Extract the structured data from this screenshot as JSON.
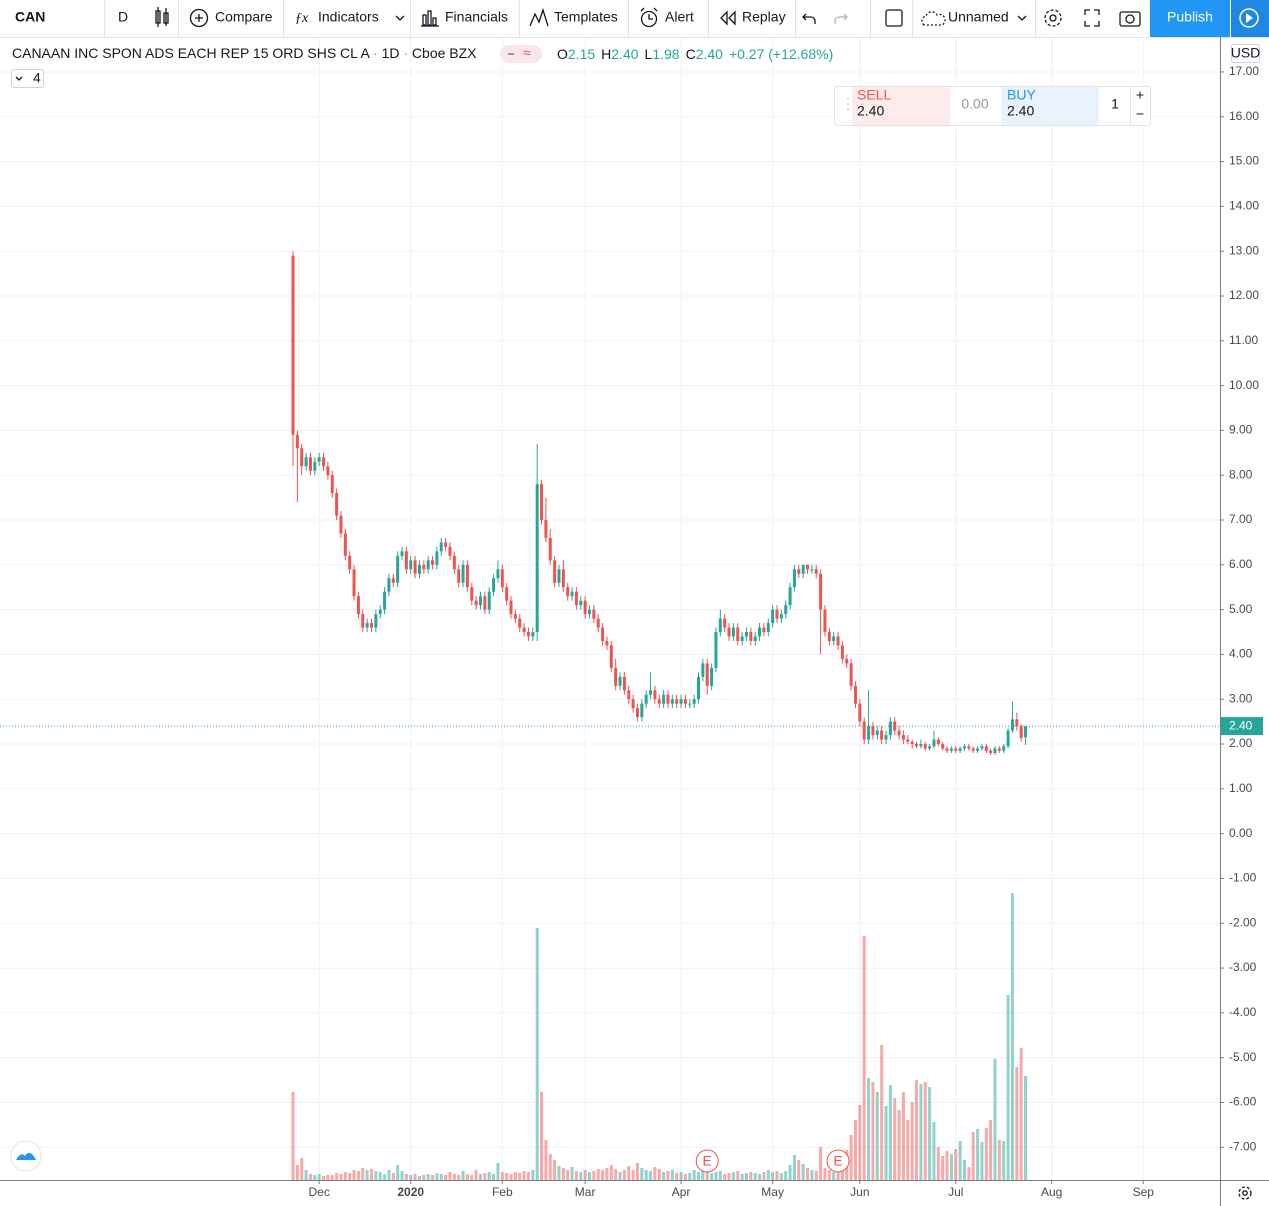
{
  "toolbar": {
    "symbol": "CAN",
    "interval": "D",
    "compare": "Compare",
    "indicators": "Indicators",
    "financials": "Financials",
    "templates": "Templates",
    "alert": "Alert",
    "replay": "Replay",
    "layout_name": "Unnamed",
    "publish": "Publish"
  },
  "header": {
    "title": "CANAAN INC SPON ADS EACH REP 15 ORD SHS CL A",
    "interval": "1D",
    "exchange": "Cboe BZX",
    "legend": [
      {
        "label": "O",
        "value": "2.15"
      },
      {
        "label": "H",
        "value": "2.40"
      },
      {
        "label": "L",
        "value": "1.98"
      },
      {
        "label": "C",
        "value": "2.40"
      }
    ],
    "change": "+0.27 (+12.68%)",
    "indicator_count": "4",
    "currency": "USD"
  },
  "trade_panel": {
    "sell_label": "SELL",
    "sell_price": "2.40",
    "spread": "0.00",
    "buy_label": "BUY",
    "buy_price": "2.40",
    "quantity": "1"
  },
  "chart_data": {
    "type": "candlestick",
    "up_color": "#26a69a",
    "down_color": "#ef5350",
    "grid": true,
    "ylim": [
      -7.73,
      17.78
    ],
    "yticks": [
      {
        "value": -7,
        "label": "-7.00"
      },
      {
        "value": -6,
        "label": "-6.00"
      },
      {
        "value": -5,
        "label": "-5.00"
      },
      {
        "value": -4,
        "label": "-4.00"
      },
      {
        "value": -3,
        "label": "-3.00"
      },
      {
        "value": -2,
        "label": "-2.00"
      },
      {
        "value": -1,
        "label": "-1.00"
      },
      {
        "value": 0,
        "label": "0.00"
      },
      {
        "value": 1,
        "label": "1.00"
      },
      {
        "value": 2,
        "label": "2.00"
      },
      {
        "value": 3,
        "label": "3.00"
      },
      {
        "value": 4,
        "label": "4.00"
      },
      {
        "value": 5,
        "label": "5.00"
      },
      {
        "value": 6,
        "label": "6.00"
      },
      {
        "value": 7,
        "label": "7.00"
      },
      {
        "value": 8,
        "label": "8.00"
      },
      {
        "value": 9,
        "label": "9.00"
      },
      {
        "value": 10,
        "label": "10.00"
      },
      {
        "value": 11,
        "label": "11.00"
      },
      {
        "value": 12,
        "label": "12.00"
      },
      {
        "value": 13,
        "label": "13.00"
      },
      {
        "value": 14,
        "label": "14.00"
      },
      {
        "value": 15,
        "label": "15.00"
      },
      {
        "value": 16,
        "label": "16.00"
      },
      {
        "value": 17,
        "label": "17.00"
      }
    ],
    "xlim": [
      -67.2,
      212.6
    ],
    "xticks": [
      {
        "value": 6,
        "label": "Dec"
      },
      {
        "value": 27,
        "label": "2020"
      },
      {
        "value": 48,
        "label": "Feb"
      },
      {
        "value": 67,
        "label": "Mar"
      },
      {
        "value": 89,
        "label": "Apr"
      },
      {
        "value": 110,
        "label": "May"
      },
      {
        "value": 130,
        "label": "Jun"
      },
      {
        "value": 152,
        "label": "Jul"
      },
      {
        "value": 174,
        "label": "Aug"
      },
      {
        "value": 195,
        "label": "Sep"
      }
    ],
    "last_price": {
      "value": 2.4,
      "label": "2.40"
    },
    "events": [
      {
        "label": "E",
        "x": 95
      },
      {
        "label": "E",
        "x": 125
      }
    ],
    "candles": [
      [
        12.9,
        13.0,
        8.2,
        8.9
      ],
      [
        8.9,
        9.0,
        7.4,
        8.6
      ],
      [
        8.6,
        8.7,
        8.0,
        8.2
      ],
      [
        8.2,
        8.5,
        8.1,
        8.4
      ],
      [
        8.4,
        8.5,
        8.0,
        8.1
      ],
      [
        8.1,
        8.4,
        8.0,
        8.3
      ],
      [
        8.3,
        8.5,
        8.2,
        8.4
      ],
      [
        8.4,
        8.5,
        8.1,
        8.2
      ],
      [
        8.2,
        8.3,
        7.9,
        8.0
      ],
      [
        8.0,
        8.1,
        7.5,
        7.6
      ],
      [
        7.6,
        7.7,
        7.0,
        7.1
      ],
      [
        7.1,
        7.2,
        6.6,
        6.7
      ],
      [
        6.7,
        6.8,
        6.1,
        6.2
      ],
      [
        6.2,
        6.3,
        5.8,
        5.9
      ],
      [
        5.9,
        6.0,
        5.2,
        5.3
      ],
      [
        5.3,
        5.4,
        4.8,
        4.9
      ],
      [
        4.9,
        5.0,
        4.5,
        4.6
      ],
      [
        4.6,
        4.8,
        4.5,
        4.7
      ],
      [
        4.7,
        4.8,
        4.5,
        4.6
      ],
      [
        4.6,
        5.0,
        4.5,
        4.9
      ],
      [
        4.9,
        5.1,
        4.8,
        5.0
      ],
      [
        5.0,
        5.5,
        4.9,
        5.4
      ],
      [
        5.4,
        5.8,
        5.3,
        5.7
      ],
      [
        5.7,
        5.8,
        5.5,
        5.6
      ],
      [
        5.6,
        6.3,
        5.5,
        6.2
      ],
      [
        6.2,
        6.4,
        6.1,
        6.3
      ],
      [
        6.3,
        6.4,
        5.8,
        5.9
      ],
      [
        5.9,
        6.2,
        5.8,
        6.1
      ],
      [
        6.1,
        6.2,
        5.7,
        5.8
      ],
      [
        5.8,
        6.1,
        5.7,
        6.0
      ],
      [
        6.0,
        6.1,
        5.8,
        5.9
      ],
      [
        5.9,
        6.2,
        5.8,
        6.1
      ],
      [
        6.1,
        6.2,
        5.9,
        6.0
      ],
      [
        6.0,
        6.4,
        5.9,
        6.3
      ],
      [
        6.3,
        6.6,
        6.2,
        6.5
      ],
      [
        6.5,
        6.6,
        6.3,
        6.4
      ],
      [
        6.4,
        6.5,
        6.1,
        6.2
      ],
      [
        6.2,
        6.3,
        5.8,
        5.9
      ],
      [
        5.9,
        6.0,
        5.5,
        5.6
      ],
      [
        5.6,
        6.1,
        5.5,
        6.0
      ],
      [
        6.0,
        6.1,
        5.4,
        5.5
      ],
      [
        5.5,
        5.6,
        5.1,
        5.2
      ],
      [
        5.2,
        5.3,
        5.0,
        5.1
      ],
      [
        5.1,
        5.4,
        5.0,
        5.3
      ],
      [
        5.3,
        5.4,
        4.9,
        5.0
      ],
      [
        5.0,
        5.5,
        4.9,
        5.4
      ],
      [
        5.4,
        5.8,
        5.3,
        5.7
      ],
      [
        5.7,
        6.1,
        5.6,
        5.9
      ],
      [
        5.9,
        6.0,
        5.4,
        5.5
      ],
      [
        5.5,
        5.6,
        5.1,
        5.2
      ],
      [
        5.2,
        5.3,
        4.8,
        4.9
      ],
      [
        4.9,
        5.0,
        4.7,
        4.8
      ],
      [
        4.8,
        4.9,
        4.5,
        4.6
      ],
      [
        4.6,
        4.7,
        4.4,
        4.5
      ],
      [
        4.5,
        4.6,
        4.3,
        4.4
      ],
      [
        4.4,
        4.6,
        4.3,
        4.5
      ],
      [
        4.5,
        8.7,
        4.3,
        7.8
      ],
      [
        7.8,
        7.9,
        6.9,
        7.0
      ],
      [
        7.0,
        7.5,
        6.5,
        6.6
      ],
      [
        6.6,
        6.8,
        6.0,
        6.1
      ],
      [
        6.1,
        6.2,
        5.5,
        5.6
      ],
      [
        5.6,
        6.0,
        5.5,
        5.9
      ],
      [
        5.9,
        6.1,
        5.4,
        5.5
      ],
      [
        5.5,
        5.6,
        5.2,
        5.3
      ],
      [
        5.3,
        5.5,
        5.2,
        5.4
      ],
      [
        5.4,
        5.5,
        5.0,
        5.1
      ],
      [
        5.1,
        5.3,
        5.0,
        5.2
      ],
      [
        5.2,
        5.3,
        4.8,
        4.9
      ],
      [
        4.9,
        5.1,
        4.8,
        5.0
      ],
      [
        5.0,
        5.1,
        4.7,
        4.8
      ],
      [
        4.8,
        4.9,
        4.5,
        4.6
      ],
      [
        4.6,
        4.7,
        4.2,
        4.3
      ],
      [
        4.3,
        4.4,
        4.1,
        4.2
      ],
      [
        4.2,
        4.3,
        3.6,
        3.7
      ],
      [
        3.7,
        3.9,
        3.2,
        3.3
      ],
      [
        3.3,
        3.6,
        3.2,
        3.5
      ],
      [
        3.5,
        3.6,
        3.1,
        3.2
      ],
      [
        3.2,
        3.3,
        2.9,
        3.0
      ],
      [
        3.0,
        3.1,
        2.7,
        2.8
      ],
      [
        2.8,
        2.9,
        2.5,
        2.6
      ],
      [
        2.6,
        3.0,
        2.5,
        2.9
      ],
      [
        2.9,
        3.2,
        2.8,
        3.1
      ],
      [
        3.1,
        3.6,
        3.0,
        3.2
      ],
      [
        3.2,
        3.3,
        2.9,
        3.0
      ],
      [
        3.0,
        3.1,
        2.8,
        2.9
      ],
      [
        2.9,
        3.2,
        2.8,
        3.1
      ],
      [
        3.1,
        3.2,
        2.8,
        2.9
      ],
      [
        2.9,
        3.1,
        2.8,
        3.0
      ],
      [
        3.0,
        3.1,
        2.8,
        2.9
      ],
      [
        2.9,
        3.1,
        2.8,
        3.0
      ],
      [
        3.0,
        3.1,
        2.8,
        2.9
      ],
      [
        2.9,
        3.0,
        2.8,
        2.9
      ],
      [
        2.9,
        3.1,
        2.8,
        3.0
      ],
      [
        3.0,
        3.6,
        2.9,
        3.5
      ],
      [
        3.5,
        3.9,
        3.4,
        3.8
      ],
      [
        3.8,
        3.9,
        3.1,
        3.3
      ],
      [
        3.3,
        3.8,
        3.2,
        3.7
      ],
      [
        3.7,
        4.6,
        3.6,
        4.5
      ],
      [
        4.5,
        5.0,
        4.4,
        4.8
      ],
      [
        4.8,
        4.9,
        4.5,
        4.6
      ],
      [
        4.6,
        4.7,
        4.3,
        4.4
      ],
      [
        4.4,
        4.7,
        4.3,
        4.6
      ],
      [
        4.6,
        4.7,
        4.2,
        4.3
      ],
      [
        4.3,
        4.5,
        4.2,
        4.4
      ],
      [
        4.4,
        4.6,
        4.3,
        4.5
      ],
      [
        4.5,
        4.6,
        4.2,
        4.3
      ],
      [
        4.3,
        4.5,
        4.2,
        4.4
      ],
      [
        4.4,
        4.7,
        4.3,
        4.6
      ],
      [
        4.6,
        4.7,
        4.4,
        4.5
      ],
      [
        4.5,
        4.8,
        4.4,
        4.7
      ],
      [
        4.7,
        5.1,
        4.6,
        5.0
      ],
      [
        5.0,
        5.1,
        4.7,
        4.8
      ],
      [
        4.8,
        5.0,
        4.7,
        4.9
      ],
      [
        4.9,
        5.2,
        4.8,
        5.1
      ],
      [
        5.1,
        5.6,
        5.0,
        5.5
      ],
      [
        5.5,
        6.0,
        5.4,
        5.9
      ],
      [
        5.9,
        6.0,
        5.7,
        5.8
      ],
      [
        5.8,
        6.0,
        5.7,
        6.0
      ],
      [
        6.0,
        6.0,
        5.8,
        5.9
      ],
      [
        5.9,
        6.0,
        5.8,
        5.9
      ],
      [
        5.9,
        6.0,
        5.7,
        5.8
      ],
      [
        5.8,
        5.9,
        4.0,
        5.0
      ],
      [
        5.0,
        5.1,
        4.4,
        4.5
      ],
      [
        4.5,
        4.6,
        4.2,
        4.3
      ],
      [
        4.3,
        4.5,
        4.2,
        4.4
      ],
      [
        4.4,
        4.5,
        4.1,
        4.2
      ],
      [
        4.2,
        4.3,
        3.8,
        3.9
      ],
      [
        3.9,
        4.0,
        3.7,
        3.8
      ],
      [
        3.8,
        3.9,
        3.2,
        3.3
      ],
      [
        3.3,
        3.4,
        2.8,
        2.9
      ],
      [
        2.9,
        3.0,
        2.4,
        2.5
      ],
      [
        2.5,
        2.6,
        2.0,
        2.1
      ],
      [
        2.1,
        3.2,
        2.0,
        2.4
      ],
      [
        2.4,
        2.5,
        2.1,
        2.2
      ],
      [
        2.2,
        2.4,
        2.1,
        2.3
      ],
      [
        2.3,
        2.4,
        2.0,
        2.1
      ],
      [
        2.1,
        2.3,
        2.0,
        2.2
      ],
      [
        2.2,
        2.6,
        2.1,
        2.5
      ],
      [
        2.5,
        2.6,
        2.2,
        2.3
      ],
      [
        2.3,
        2.4,
        2.1,
        2.2
      ],
      [
        2.2,
        2.3,
        2.0,
        2.1
      ],
      [
        2.1,
        2.2,
        2.0,
        2.05
      ],
      [
        2.05,
        2.1,
        1.9,
        2.0
      ],
      [
        2.0,
        2.05,
        1.9,
        1.95
      ],
      [
        1.95,
        2.1,
        1.9,
        2.0
      ],
      [
        2.0,
        2.05,
        1.85,
        1.9
      ],
      [
        1.9,
        2.0,
        1.85,
        1.95
      ],
      [
        1.95,
        2.3,
        1.9,
        2.1
      ],
      [
        2.1,
        2.15,
        1.95,
        2.0
      ],
      [
        2.0,
        2.05,
        1.85,
        1.9
      ],
      [
        1.9,
        1.95,
        1.8,
        1.85
      ],
      [
        1.85,
        1.95,
        1.8,
        1.9
      ],
      [
        1.9,
        1.95,
        1.8,
        1.85
      ],
      [
        1.85,
        1.95,
        1.8,
        1.9
      ],
      [
        1.9,
        2.0,
        1.85,
        1.95
      ],
      [
        1.95,
        2.0,
        1.85,
        1.9
      ],
      [
        1.9,
        1.95,
        1.8,
        1.85
      ],
      [
        1.85,
        1.95,
        1.8,
        1.9
      ],
      [
        1.9,
        2.0,
        1.85,
        1.95
      ],
      [
        1.95,
        2.0,
        1.8,
        1.85
      ],
      [
        1.85,
        1.9,
        1.75,
        1.8
      ],
      [
        1.8,
        1.95,
        1.75,
        1.9
      ],
      [
        1.9,
        1.95,
        1.8,
        1.85
      ],
      [
        1.85,
        2.0,
        1.8,
        1.95
      ],
      [
        1.95,
        2.35,
        1.9,
        2.3
      ],
      [
        2.3,
        2.95,
        2.25,
        2.55
      ],
      [
        2.55,
        2.7,
        2.3,
        2.4
      ],
      [
        2.4,
        2.45,
        2.05,
        2.13
      ],
      [
        2.15,
        2.4,
        1.98,
        2.4
      ]
    ],
    "volume": [
      8.8,
      1.5,
      2.2,
      1.0,
      0.6,
      0.5,
      0.6,
      0.4,
      0.5,
      0.5,
      0.7,
      0.6,
      0.8,
      0.7,
      1.0,
      0.9,
      1.2,
      1.0,
      1.1,
      0.9,
      0.8,
      0.6,
      1.0,
      0.7,
      1.5,
      0.9,
      0.6,
      0.5,
      0.6,
      0.4,
      0.5,
      0.6,
      0.5,
      0.7,
      0.6,
      0.5,
      0.8,
      0.6,
      0.5,
      0.9,
      0.6,
      0.5,
      1.0,
      0.6,
      0.7,
      0.8,
      0.6,
      1.7,
      0.8,
      0.7,
      0.6,
      0.8,
      0.7,
      0.9,
      0.8,
      1.0,
      25.2,
      8.8,
      4.0,
      2.6,
      2.0,
      1.4,
      1.2,
      1.0,
      1.3,
      0.9,
      0.8,
      1.0,
      0.8,
      0.9,
      1.1,
      1.0,
      1.2,
      1.5,
      1.1,
      0.8,
      1.0,
      1.4,
      1.0,
      1.7,
      1.2,
      1.0,
      0.9,
      1.3,
      1.1,
      0.8,
      0.9,
      1.0,
      0.7,
      0.8,
      0.6,
      0.7,
      1.0,
      0.8,
      0.9,
      1.0,
      0.7,
      0.8,
      0.9,
      0.6,
      0.7,
      0.8,
      0.9,
      0.6,
      0.7,
      0.8,
      0.7,
      0.6,
      0.8,
      1.0,
      0.8,
      0.9,
      0.7,
      0.9,
      1.5,
      2.5,
      2.0,
      1.6,
      1.2,
      1.0,
      0.9,
      3.3,
      1.2,
      1.0,
      0.8,
      1.3,
      2.1,
      3.0,
      4.5,
      6.0,
      7.5,
      24.4,
      10.2,
      9.8,
      8.8,
      13.5,
      7.4,
      9.5,
      8.2,
      7.0,
      8.8,
      6.0,
      7.8,
      10.0,
      9.6,
      9.8,
      9.3,
      5.8,
      3.3,
      2.4,
      2.9,
      2.6,
      3.1,
      3.9,
      2.0,
      1.3,
      4.8,
      5.1,
      3.8,
      5.2,
      6.0,
      12.1,
      4.0,
      3.9,
      18.5,
      28.7,
      11.3,
      13.2,
      10.4
    ]
  }
}
